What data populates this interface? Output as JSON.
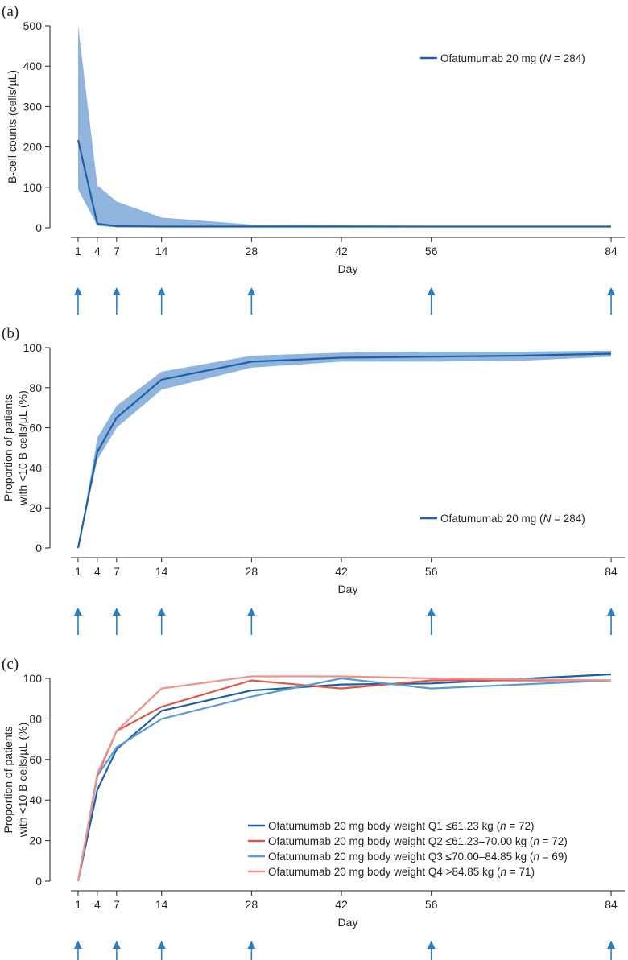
{
  "colors": {
    "dark_blue": "#1f5fa6",
    "ci_fill": "#8fb4de",
    "arrow": "#2a7fc4",
    "q1": "#1f5fa6",
    "q2": "#e0574a",
    "q3": "#5b9bd5",
    "q4": "#f2918a",
    "axis": "#231f20"
  },
  "chart_data": [
    {
      "panel_label": "(a)",
      "type": "line",
      "title": "",
      "xlabel": "Day",
      "ylabel": "B-cell counts (cells/µL)",
      "xlim": [
        0,
        86
      ],
      "ylim": [
        0,
        500
      ],
      "xticks": [
        1,
        4,
        7,
        14,
        28,
        42,
        56,
        84
      ],
      "yticks": [
        0,
        100,
        200,
        300,
        400,
        500
      ],
      "x": [
        1,
        4,
        7,
        14,
        28,
        42,
        56,
        84
      ],
      "series": [
        {
          "name": "Ofatumumab 20 mg (N = 284)",
          "legend_prefix": "Ofatumumab 20 mg (",
          "legend_italic": "N",
          "legend_suffix": " = 284)",
          "color": "#1f5fa6",
          "values": [
            217,
            10,
            4,
            3,
            3,
            3,
            3,
            3
          ]
        }
      ],
      "band": {
        "lower": [
          95,
          5,
          1,
          1,
          1,
          1,
          1,
          1
        ],
        "upper": [
          500,
          105,
          65,
          25,
          8,
          6,
          5,
          4
        ]
      },
      "legend_position": "top-right",
      "dose_arrow_days": [
        1,
        7,
        14,
        28,
        56,
        84
      ]
    },
    {
      "panel_label": "(b)",
      "type": "line",
      "title": "",
      "xlabel": "Day",
      "ylabel": "Proportion of patients",
      "ylabel2": "with <10 B cells/µL (%)",
      "xlim": [
        0,
        86
      ],
      "ylim": [
        0,
        100
      ],
      "xticks": [
        1,
        4,
        7,
        14,
        28,
        42,
        56,
        84
      ],
      "yticks": [
        0,
        20,
        40,
        60,
        80,
        100
      ],
      "x": [
        1,
        4,
        7,
        14,
        28,
        42,
        56,
        70,
        84
      ],
      "series": [
        {
          "name": "Ofatumumab 20 mg (N = 284)",
          "legend_prefix": "Ofatumumab 20 mg (",
          "legend_italic": "N",
          "legend_suffix": " = 284)",
          "color": "#1f5fa6",
          "values": [
            0,
            48,
            65,
            84,
            93,
            95,
            95.5,
            96,
            97
          ]
        }
      ],
      "band": {
        "lower": [
          0,
          44,
          60,
          79,
          90,
          93,
          93,
          93.5,
          95.5
        ],
        "upper": [
          0,
          55,
          71,
          88,
          96,
          97.5,
          98,
          98,
          98.5
        ]
      },
      "legend_position": "bottom-right",
      "dose_arrow_days": [
        1,
        7,
        14,
        28,
        56,
        84
      ]
    },
    {
      "panel_label": "(c)",
      "type": "line",
      "title": "",
      "xlabel": "Day",
      "ylabel": "Proportion of patients",
      "ylabel2": "with <10 B cells/µL (%)",
      "xlim": [
        0,
        86
      ],
      "ylim": [
        0,
        100
      ],
      "xticks": [
        1,
        4,
        7,
        14,
        28,
        42,
        56,
        84
      ],
      "yticks": [
        0,
        20,
        40,
        60,
        80,
        100
      ],
      "x": [
        1,
        4,
        7,
        14,
        28,
        42,
        56,
        84
      ],
      "series": [
        {
          "name": "Ofatumumab 20 mg body weight Q1 ≤61.23 kg (n = 72)",
          "legend_prefix": "Ofatumumab 20 mg body weight Q1 ≤61.23 kg (",
          "legend_italic": "n",
          "legend_suffix": " = 72)",
          "color": "#1f5fa6",
          "values": [
            0,
            45,
            65,
            84,
            94,
            97,
            97.5,
            102
          ]
        },
        {
          "name": "Ofatumumab 20 mg body weight Q2 ≤61.23–70.00 kg (n = 72)",
          "legend_prefix": "Ofatumumab 20 mg body weight Q2 ≤61.23–70.00 kg (",
          "legend_italic": "n",
          "legend_suffix": " = 72)",
          "color": "#e0574a",
          "values": [
            0,
            52,
            74,
            86,
            99,
            95,
            99,
            99
          ]
        },
        {
          "name": "Ofatumumab 20 mg body weight Q3 ≤70.00–84.85 kg (n = 69)",
          "legend_prefix": "Ofatumumab 20 mg body weight Q3 ≤70.00–84.85 kg (",
          "legend_italic": "n",
          "legend_suffix": " = 69)",
          "color": "#5b9bd5",
          "values": [
            0,
            52,
            66,
            80,
            91,
            100,
            95,
            99
          ]
        },
        {
          "name": "Ofatumumab 20 mg body weight Q4 >84.85 kg (n = 71)",
          "legend_prefix": "Ofatumumab 20 mg body weight Q4 >84.85 kg (",
          "legend_italic": "n",
          "legend_suffix": " = 71)",
          "color": "#f2918a",
          "values": [
            0,
            53,
            74,
            95,
            101,
            101,
            100,
            99
          ]
        }
      ],
      "legend_position": "bottom-right",
      "dose_arrow_days": [
        1,
        7,
        14,
        28,
        56,
        84
      ]
    }
  ]
}
